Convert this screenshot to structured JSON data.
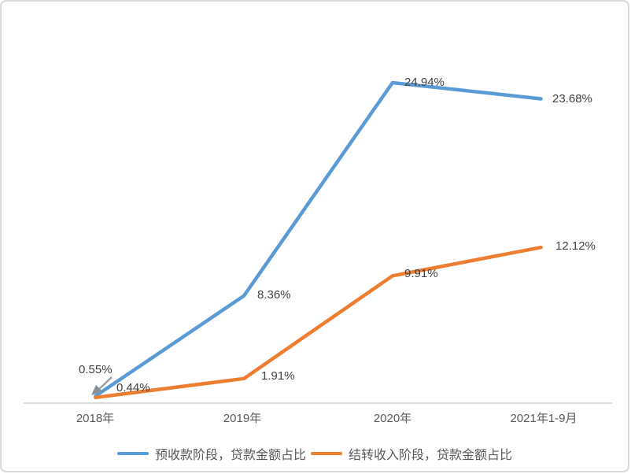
{
  "chart_data": {
    "type": "line",
    "title": "",
    "xlabel": "",
    "ylabel": "",
    "categories": [
      "2018年",
      "2019年",
      "2020年",
      "2021年1-9月"
    ],
    "series": [
      {
        "name": "预收款阶段，贷款金额占比",
        "color": "#5B9BD5",
        "values": [
          0.55,
          8.36,
          24.94,
          23.68
        ],
        "labels": [
          "0.55%",
          "8.36%",
          "24.94%",
          "23.68%"
        ]
      },
      {
        "name": "结转收入阶段，贷款金额占比",
        "color": "#ED7D31",
        "values": [
          0.44,
          1.91,
          9.91,
          12.12
        ],
        "labels": [
          "0.44%",
          "1.91%",
          "9.91%",
          "12.12%"
        ]
      }
    ],
    "ylim": [
      0,
      25
    ],
    "grid": false,
    "legend_position": "bottom",
    "axis_line_color": "#D9D9D9",
    "data_label_color": "#404040",
    "tick_label_color": "#595959"
  }
}
